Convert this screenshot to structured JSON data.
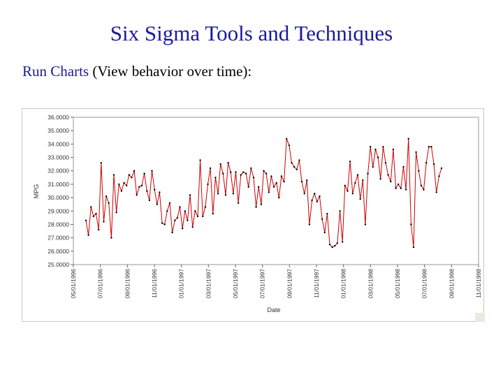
{
  "slide": {
    "title": "Six Sigma Tools and Techniques",
    "subtitle_highlight": "Run Charts",
    "subtitle_rest": " (View behavior over time):"
  },
  "colors": {
    "title": "#1a1a9c",
    "series": "#cc0000",
    "points": "#000000"
  },
  "chart_data": {
    "type": "line",
    "xlabel": "Date",
    "ylabel": "MPG",
    "ylim": [
      25,
      36
    ],
    "yticks": [
      "25.0000",
      "26.0000",
      "27.0000",
      "28.0000",
      "29.0000",
      "30.0000",
      "31.0000",
      "32.0000",
      "33.0000",
      "34.0000",
      "35.0000",
      "36.0000"
    ],
    "xticks": [
      "05/01/1996",
      "07/01/1996",
      "09/01/1996",
      "11/01/1996",
      "01/01/1997",
      "03/01/1997",
      "05/01/1997",
      "07/01/1997",
      "09/01/1997",
      "11/01/1997",
      "01/01/1998",
      "03/01/1998",
      "05/01/1998",
      "07/01/1998",
      "09/01/1998",
      "11/01/1998"
    ],
    "grid": false,
    "legend": "none",
    "series": [
      {
        "values": [
          28.3,
          27.2,
          29.3,
          28.6,
          28.8,
          27.6,
          32.6,
          28.2,
          30.1,
          29.6,
          27.0,
          31.7,
          28.9,
          31.0,
          30.5,
          31.1,
          30.9,
          31.7,
          31.5,
          32.0,
          30.2,
          30.8,
          30.9,
          31.8,
          30.5,
          29.8,
          32.0,
          30.6,
          29.5,
          30.4,
          28.1,
          28.0,
          29.0,
          29.6,
          27.4,
          28.3,
          28.5,
          29.3,
          27.7,
          29.0,
          28.3,
          30.2,
          27.8,
          29.0,
          28.6,
          32.8,
          28.6,
          29.3,
          31.0,
          32.2,
          28.8,
          31.5,
          30.3,
          32.5,
          31.8,
          30.2,
          32.6,
          31.9,
          30.3,
          31.9,
          29.6,
          31.7,
          31.9,
          31.8,
          30.8,
          32.2,
          31.5,
          29.3,
          30.8,
          29.5,
          32.0,
          31.8,
          30.4,
          31.6,
          30.8,
          31.1,
          30.0,
          31.6,
          31.2,
          34.4,
          33.9,
          32.6,
          32.3,
          32.1,
          32.8,
          31.2,
          30.3,
          31.3,
          28.0,
          29.8,
          30.3,
          29.7,
          30.1,
          28.4,
          27.4,
          28.8,
          26.5,
          26.3,
          26.4,
          26.6,
          29.0,
          26.7,
          30.9,
          30.5,
          32.7,
          30.3,
          31.1,
          31.7,
          29.9,
          31.3,
          28.0,
          31.8,
          33.8,
          32.3,
          33.6,
          33.0,
          31.4,
          33.8,
          32.6,
          31.7,
          31.2,
          33.6,
          30.7,
          31.0,
          30.7,
          32.3,
          30.6,
          34.4,
          28.0,
          26.3,
          33.4,
          32.0,
          30.9,
          30.6,
          32.6,
          33.8,
          33.8,
          32.5,
          30.4,
          31.6,
          32.2
        ]
      }
    ]
  }
}
